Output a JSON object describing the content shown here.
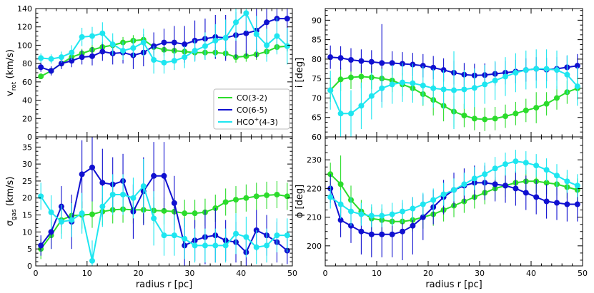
{
  "chart_data": [
    {
      "type": "line",
      "panel": "top-left",
      "ylabel": "v_rot (km/s)",
      "ylabel_main": "v",
      "ylabel_sub": "rot",
      "ylabel_unit": " (km/s)",
      "xlabel": "",
      "xlim": [
        0,
        50
      ],
      "ylim": [
        0,
        140
      ],
      "xticks": [
        0,
        10,
        20,
        30,
        40,
        50
      ],
      "yticks": [
        0,
        20,
        40,
        60,
        80,
        100,
        120,
        140
      ],
      "legend": {
        "placement": "center-right",
        "entries": [
          "CO(3-2)",
          "CO(6-5)",
          "HCO+(4-3)"
        ],
        "entry_main": [
          "CO(3-2)",
          "CO(6-5)",
          "HCO"
        ],
        "entry_sup": [
          "",
          "",
          "+"
        ],
        "entry_tail": [
          "",
          "",
          "(4-3)"
        ]
      },
      "series": [
        {
          "name": "CO(3-2)",
          "color": "#2bdc2b",
          "x": [
            1,
            3,
            5,
            7,
            9,
            11,
            13,
            15,
            17,
            19,
            21,
            23,
            25,
            27,
            29,
            31,
            33,
            35,
            37,
            39,
            41,
            43,
            45,
            47,
            49
          ],
          "y": [
            66,
            72,
            80,
            87,
            91,
            95,
            98,
            100,
            103,
            105,
            106,
            98,
            95,
            94,
            93,
            92,
            92,
            92,
            91,
            87,
            88,
            90,
            93,
            98,
            99
          ],
          "err": [
            3,
            4,
            4,
            5,
            5,
            5,
            5,
            6,
            6,
            6,
            6,
            6,
            6,
            6,
            6,
            6,
            6,
            6,
            6,
            6,
            6,
            6,
            6,
            6,
            6
          ]
        },
        {
          "name": "CO(6-5)",
          "color": "#1010d0",
          "x": [
            1,
            3,
            5,
            7,
            9,
            11,
            13,
            15,
            17,
            19,
            21,
            23,
            25,
            27,
            29,
            31,
            33,
            35,
            37,
            39,
            41,
            43,
            45,
            47,
            49
          ],
          "y": [
            76,
            72,
            80,
            83,
            87,
            88,
            93,
            91,
            92,
            89,
            92,
            99,
            103,
            103,
            101,
            105,
            107,
            109,
            108,
            111,
            113,
            116,
            125,
            129,
            129
          ],
          "err": [
            5,
            5,
            6,
            7,
            8,
            10,
            10,
            12,
            12,
            15,
            15,
            15,
            15,
            18,
            20,
            22,
            22,
            24,
            25,
            25,
            25,
            30,
            30,
            35,
            35
          ]
        },
        {
          "name": "HCO+(4-3)",
          "color": "#1ee6f0",
          "x": [
            1,
            3,
            5,
            7,
            9,
            11,
            13,
            15,
            17,
            19,
            21,
            23,
            25,
            27,
            29,
            31,
            33,
            35,
            37,
            39,
            41,
            43,
            45,
            47,
            49
          ],
          "y": [
            86,
            85,
            87,
            92,
            109,
            110,
            113,
            101,
            94,
            97,
            103,
            84,
            81,
            83,
            87,
            94,
            99,
            105,
            108,
            125,
            135,
            112,
            100,
            110,
            99
          ],
          "err": [
            5,
            5,
            6,
            8,
            10,
            10,
            12,
            12,
            10,
            10,
            15,
            15,
            12,
            10,
            12,
            12,
            15,
            18,
            20,
            20,
            20,
            20,
            18,
            20,
            20
          ]
        }
      ]
    },
    {
      "type": "line",
      "panel": "top-right",
      "ylabel": "i [deg]",
      "xlabel": "",
      "xlim": [
        0,
        50
      ],
      "ylim": [
        60,
        93
      ],
      "xticks": [
        0,
        10,
        20,
        30,
        40,
        50
      ],
      "yticks": [
        60,
        65,
        70,
        75,
        80,
        85,
        90
      ],
      "series": [
        {
          "name": "CO(3-2)",
          "color": "#2bdc2b",
          "x": [
            1,
            3,
            5,
            7,
            9,
            11,
            13,
            15,
            17,
            19,
            21,
            23,
            25,
            27,
            29,
            31,
            33,
            35,
            37,
            39,
            41,
            43,
            45,
            47,
            49
          ],
          "y": [
            72,
            74.8,
            75.3,
            75.5,
            75.3,
            75,
            74.5,
            73.5,
            72.5,
            71,
            69.5,
            68,
            66.5,
            65.5,
            64.7,
            64.5,
            64.7,
            65.3,
            66,
            66.8,
            67.5,
            68.5,
            70,
            71.5,
            72.5
          ],
          "err": [
            3,
            3,
            3,
            3,
            3,
            3,
            3,
            3,
            3,
            3,
            4,
            4,
            4,
            3,
            3,
            3,
            3,
            3,
            3,
            3,
            4,
            3,
            3,
            3,
            3
          ]
        },
        {
          "name": "CO(6-5)",
          "color": "#1010d0",
          "x": [
            1,
            3,
            5,
            7,
            9,
            11,
            13,
            15,
            17,
            19,
            21,
            23,
            25,
            27,
            29,
            31,
            33,
            35,
            37,
            39,
            41,
            43,
            45,
            47,
            49
          ],
          "y": [
            80.5,
            80.3,
            79.8,
            79.5,
            79.3,
            79,
            79,
            78.8,
            78.6,
            78.3,
            77.8,
            77.2,
            76.5,
            76,
            75.8,
            75.9,
            76.2,
            76.5,
            76.8,
            77.2,
            77.5,
            77.3,
            77.5,
            77.9,
            78.3
          ],
          "err": [
            3,
            3,
            3,
            3,
            3,
            10,
            3,
            3,
            3,
            3,
            3,
            3,
            3,
            3,
            3,
            3,
            3,
            3,
            3,
            3,
            3,
            3,
            3,
            3,
            3
          ]
        },
        {
          "name": "HCO+(4-3)",
          "color": "#1ee6f0",
          "x": [
            1,
            3,
            5,
            7,
            9,
            11,
            13,
            15,
            17,
            19,
            21,
            23,
            25,
            27,
            29,
            31,
            33,
            35,
            37,
            39,
            41,
            43,
            45,
            47,
            49
          ],
          "y": [
            72,
            66,
            66,
            68,
            70.5,
            72.5,
            73.5,
            74,
            73.8,
            73.2,
            72.5,
            72.2,
            72,
            72.2,
            72.6,
            73.5,
            74.5,
            75.5,
            76.5,
            77.2,
            77.5,
            77.5,
            77.2,
            76,
            73
          ],
          "err": [
            5,
            8,
            6,
            6,
            6,
            5,
            5,
            5,
            5,
            5,
            5,
            5,
            10,
            5,
            5,
            5,
            5,
            5,
            5,
            5,
            5,
            5,
            5,
            5,
            5
          ]
        }
      ]
    },
    {
      "type": "line",
      "panel": "bottom-left",
      "ylabel": "σ_gas (km/s)",
      "ylabel_main": "σ",
      "ylabel_sub": "gas",
      "ylabel_unit": " (km/s)",
      "xlabel": "radius r [pc]",
      "xlim": [
        0,
        50
      ],
      "ylim": [
        0,
        38
      ],
      "xticks": [
        0,
        10,
        20,
        30,
        40,
        50
      ],
      "yticks": [
        0,
        5,
        10,
        15,
        20,
        25,
        30,
        35
      ],
      "series": [
        {
          "name": "CO(3-2)",
          "color": "#2bdc2b",
          "x": [
            1,
            3,
            5,
            7,
            9,
            11,
            13,
            15,
            17,
            19,
            21,
            23,
            25,
            27,
            29,
            31,
            33,
            35,
            37,
            39,
            41,
            43,
            45,
            47,
            49
          ],
          "y": [
            5,
            9,
            13.5,
            14.8,
            15,
            15.2,
            16,
            16.5,
            16.7,
            16.5,
            16.5,
            16.3,
            16.2,
            16,
            15.5,
            15.5,
            15.8,
            17,
            18.8,
            19.5,
            20,
            20.5,
            20.8,
            21,
            20.5
          ],
          "err": [
            3,
            4,
            4,
            4,
            4,
            4,
            4,
            4,
            4,
            4,
            4,
            4,
            4,
            4,
            4,
            4,
            4,
            4,
            4,
            4,
            4,
            4,
            4,
            4,
            4
          ]
        },
        {
          "name": "CO(6-5)",
          "color": "#1010d0",
          "x": [
            1,
            3,
            5,
            7,
            9,
            11,
            13,
            15,
            17,
            19,
            21,
            23,
            25,
            27,
            29,
            31,
            33,
            35,
            37,
            39,
            41,
            43,
            45,
            47,
            49
          ],
          "y": [
            6,
            10,
            17.5,
            13,
            27,
            29,
            24.5,
            24,
            25,
            16,
            22,
            26.5,
            26.5,
            18.5,
            6,
            7.5,
            8.5,
            9,
            7.5,
            7,
            4,
            10.5,
            9,
            7,
            4.5
          ],
          "err": [
            3,
            5,
            6,
            8,
            10,
            10,
            10,
            8,
            8,
            8,
            10,
            10,
            10,
            8,
            8,
            6,
            8,
            8,
            6,
            6,
            4,
            6,
            6,
            6,
            4
          ]
        },
        {
          "name": "HCO+(4-3)",
          "color": "#1ee6f0",
          "x": [
            1,
            3,
            5,
            7,
            9,
            11,
            13,
            15,
            17,
            19,
            21,
            23,
            25,
            27,
            29,
            31,
            33,
            35,
            37,
            39,
            41,
            43,
            45,
            47,
            49
          ],
          "y": [
            20.5,
            15.8,
            13,
            13.5,
            15.5,
            1.5,
            17.5,
            21,
            21,
            20,
            23.5,
            14,
            9,
            9,
            8,
            6,
            6,
            6,
            6,
            9.5,
            8.5,
            5.5,
            6,
            9,
            9
          ],
          "err": [
            4,
            5,
            5,
            5,
            6,
            6,
            6,
            6,
            6,
            6,
            8,
            8,
            6,
            6,
            6,
            5,
            5,
            5,
            5,
            6,
            6,
            5,
            5,
            5,
            5
          ]
        }
      ]
    },
    {
      "type": "line",
      "panel": "bottom-right",
      "ylabel": "ϕ [deg]",
      "xlabel": "radius r [pc]",
      "xlim": [
        0,
        50
      ],
      "ylim": [
        193,
        238
      ],
      "xticks": [
        0,
        10,
        20,
        30,
        40,
        50
      ],
      "yticks": [
        200,
        210,
        220,
        230
      ],
      "series": [
        {
          "name": "CO(3-2)",
          "color": "#2bdc2b",
          "x": [
            1,
            3,
            5,
            7,
            9,
            11,
            13,
            15,
            17,
            19,
            21,
            23,
            25,
            27,
            29,
            31,
            33,
            35,
            37,
            39,
            41,
            43,
            45,
            47,
            49
          ],
          "y": [
            225,
            221.5,
            216,
            212,
            209.5,
            209,
            208.5,
            208.5,
            209,
            210,
            211,
            212.5,
            214,
            215.5,
            217,
            218.5,
            220,
            221,
            222,
            222.5,
            222.5,
            222,
            221.5,
            220.5,
            219.5
          ],
          "err": [
            4,
            10,
            5,
            4,
            4,
            4,
            4,
            4,
            4,
            4,
            4,
            4,
            4,
            4,
            4,
            4,
            4,
            4,
            4,
            4,
            4,
            4,
            4,
            4,
            4
          ]
        },
        {
          "name": "CO(6-5)",
          "color": "#1010d0",
          "x": [
            1,
            3,
            5,
            7,
            9,
            11,
            13,
            15,
            17,
            19,
            21,
            23,
            25,
            27,
            29,
            31,
            33,
            35,
            37,
            39,
            41,
            43,
            45,
            47,
            49
          ],
          "y": [
            220,
            209,
            207,
            205,
            204,
            204,
            204,
            205,
            207,
            210,
            213.5,
            217,
            219.5,
            221,
            222,
            222,
            221.5,
            221,
            220,
            218.5,
            217,
            215.5,
            215,
            214.5,
            214.5
          ],
          "err": [
            5,
            6,
            6,
            8,
            8,
            8,
            8,
            10,
            10,
            8,
            6,
            6,
            6,
            6,
            6,
            6,
            6,
            6,
            6,
            6,
            6,
            6,
            6,
            6,
            6
          ]
        },
        {
          "name": "HCO+(4-3)",
          "color": "#1ee6f0",
          "x": [
            1,
            3,
            5,
            7,
            9,
            11,
            13,
            15,
            17,
            19,
            21,
            23,
            25,
            27,
            29,
            31,
            33,
            35,
            37,
            39,
            41,
            43,
            45,
            47,
            49
          ],
          "y": [
            217,
            214.5,
            212,
            211,
            210.5,
            210.5,
            211,
            212,
            213,
            214.5,
            216,
            218,
            219.5,
            221.5,
            223.5,
            225,
            227,
            228.5,
            229.5,
            229,
            228,
            226.5,
            224.5,
            222.5,
            221
          ],
          "err": [
            4,
            5,
            5,
            4,
            4,
            4,
            4,
            4,
            4,
            4,
            4,
            4,
            4,
            4,
            4,
            4,
            4,
            4,
            4,
            4,
            4,
            4,
            4,
            4,
            4
          ]
        }
      ]
    }
  ]
}
